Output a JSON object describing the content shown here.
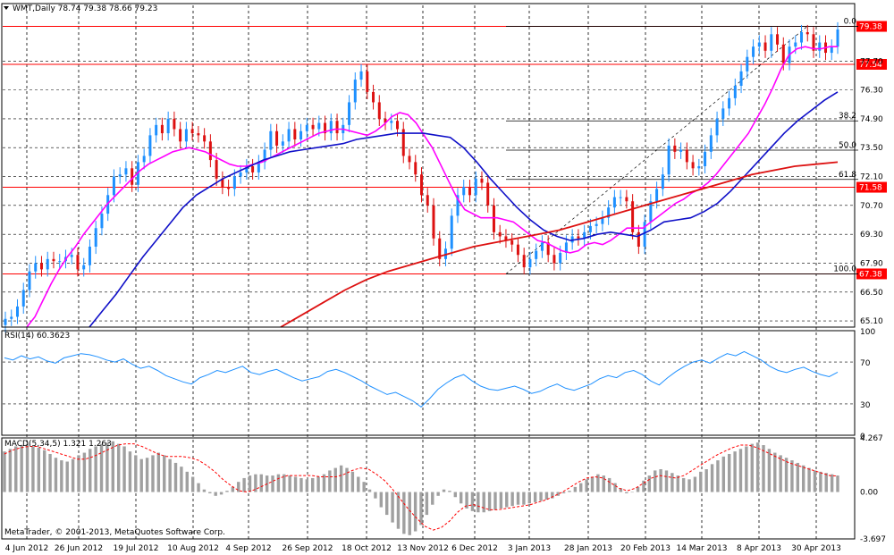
{
  "chart_data": {
    "type": "candlestick",
    "symbol_header": "WMT,Daily  78.74 79.38 78.66 79.23",
    "footer_text": "MetaTrader, © 2001-2013, MetaQuotes Software Corp.",
    "colors": {
      "bull": "#1E90FF",
      "bear": "#DD1111",
      "ma_fast": "#FF00FF",
      "ma_mid": "#1010C8",
      "ma_slow": "#DD1111",
      "hline": "#FF0000",
      "rsi": "#1E90FF",
      "macd_signal": "#FF0000",
      "macd_hist": "#A0A0A0"
    },
    "price_panel": {
      "ylim": [
        64.8,
        80.4
      ],
      "y_ticks": [
        "65.10",
        "66.50",
        "67.90",
        "69.30",
        "70.70",
        "72.10",
        "73.50",
        "74.90",
        "76.30",
        "77.70"
      ],
      "y_tick_values": [
        65.1,
        66.5,
        67.9,
        69.3,
        70.7,
        72.1,
        73.5,
        74.9,
        76.3,
        77.7
      ],
      "horizontal_lines": [
        {
          "label": "79.38",
          "value": 79.38
        },
        {
          "label": "77.54",
          "value": 77.54
        },
        {
          "label": "71.58",
          "value": 71.58
        },
        {
          "label": "67.38",
          "value": 67.38
        }
      ],
      "fibonacci": {
        "high": 79.38,
        "low": 67.38,
        "levels": [
          {
            "label": "0.0",
            "value": 79.38
          },
          {
            "label": "38.2",
            "value": 74.8
          },
          {
            "label": "50.0",
            "value": 73.38
          },
          {
            "label": "61.8",
            "value": 71.96
          },
          {
            "label": "100.0",
            "value": 67.38
          }
        ]
      },
      "closes": [
        65.2,
        65.3,
        65.8,
        66.6,
        67.5,
        67.9,
        67.6,
        68.1,
        68.0,
        68.0,
        68.2,
        68.3,
        67.6,
        67.8,
        68.7,
        69.6,
        70.3,
        71.2,
        72.1,
        72.2,
        72.5,
        71.7,
        72.8,
        73.1,
        74.1,
        74.6,
        74.2,
        74.9,
        74.4,
        73.8,
        74.4,
        74.2,
        74.1,
        73.8,
        72.9,
        72.0,
        71.6,
        71.5,
        72.1,
        72.3,
        72.6,
        72.3,
        72.8,
        73.4,
        74.3,
        73.6,
        73.8,
        74.4,
        73.9,
        74.3,
        74.6,
        74.4,
        74.7,
        74.2,
        74.8,
        74.2,
        74.6,
        75.7,
        76.8,
        77.2,
        76.2,
        75.7,
        74.9,
        74.7,
        74.8,
        74.4,
        73.1,
        72.8,
        72.2,
        71.2,
        70.7,
        69.1,
        68.1,
        68.6,
        70.2,
        71.2,
        71.6,
        71.2,
        72.0,
        71.8,
        70.7,
        69.4,
        69.2,
        69.0,
        68.8,
        68.3,
        67.7,
        68.1,
        68.5,
        68.9,
        68.3,
        67.9,
        68.4,
        68.9,
        69.2,
        69.1,
        69.4,
        69.7,
        69.8,
        70.1,
        70.6,
        71.1,
        71.1,
        70.9,
        69.4,
        68.7,
        69.9,
        70.9,
        71.5,
        72.2,
        73.6,
        73.3,
        73.4,
        72.8,
        72.5,
        72.6,
        73.3,
        74.1,
        74.9,
        75.4,
        75.9,
        76.5,
        77.2,
        77.9,
        78.4,
        78.6,
        78.2,
        79.0,
        78.5,
        77.6,
        78.4,
        78.6,
        79.1,
        79.0,
        78.2,
        78.6,
        78.1,
        78.4,
        79.23
      ],
      "ma_fast": [
        64.8,
        65.3,
        66.1,
        66.9,
        67.6,
        68.2,
        68.7,
        69.3,
        69.8,
        70.3,
        70.8,
        71.2,
        71.6,
        72.0,
        72.4,
        72.7,
        72.9,
        73.1,
        73.3,
        73.4,
        73.5,
        73.4,
        73.3,
        73.1,
        72.9,
        72.7,
        72.6,
        72.6,
        72.7,
        72.8,
        73.0,
        73.2,
        73.4,
        73.6,
        73.8,
        74.0,
        74.2,
        74.3,
        74.4,
        74.4,
        74.3,
        74.2,
        74.1,
        74.3,
        74.6,
        75.0,
        75.2,
        75.1,
        74.7,
        74.1,
        73.5,
        72.7,
        71.9,
        71.1,
        70.5,
        70.3,
        70.1,
        70.1,
        70.1,
        70.0,
        69.9,
        69.6,
        69.3,
        69.0,
        68.9,
        68.7,
        68.5,
        68.4,
        68.5,
        68.8,
        68.9,
        68.8,
        69.0,
        69.3,
        69.6,
        69.6,
        69.6,
        69.9,
        70.2,
        70.5,
        70.8,
        71.0,
        71.3,
        71.5,
        71.8,
        72.2,
        72.7,
        73.2,
        73.7,
        74.2,
        74.9,
        75.6,
        76.4,
        77.3,
        78.0,
        78.3,
        78.4,
        78.3,
        78.3,
        78.4,
        78.4
      ],
      "ma_mid": [
        64.8,
        65.6,
        66.4,
        67.3,
        68.2,
        69.0,
        69.8,
        70.6,
        71.2,
        71.6,
        72.0,
        72.3,
        72.6,
        72.9,
        73.1,
        73.3,
        73.4,
        73.5,
        73.6,
        73.7,
        73.9,
        74.0,
        74.1,
        74.2,
        74.2,
        74.2,
        74.1,
        74.0,
        73.5,
        72.8,
        72.0,
        71.3,
        70.6,
        70.0,
        69.5,
        69.2,
        69.0,
        69.1,
        69.3,
        69.4,
        69.3,
        69.2,
        69.5,
        69.9,
        70.0,
        70.1,
        70.4,
        70.8,
        71.4,
        72.1,
        72.8,
        73.5,
        74.2,
        74.8,
        75.3,
        75.8,
        76.2
      ],
      "ma_slow": [
        64.8,
        65.4,
        66.0,
        66.6,
        67.1,
        67.5,
        67.8,
        68.1,
        68.4,
        68.7,
        68.9,
        69.1,
        69.3,
        69.5,
        69.8,
        70.1,
        70.4,
        70.7,
        71.0,
        71.3,
        71.6,
        71.9,
        72.2,
        72.4,
        72.6,
        72.7,
        72.8
      ],
      "date_labels": [
        "4 Jun 2012",
        "26 Jun 2012",
        "19 Jul 2012",
        "10 Aug 2012",
        "4 Sep 2012",
        "26 Sep 2012",
        "18 Oct 2012",
        "13 Nov 2012",
        "6 Dec 2012",
        "3 Jan 2013",
        "28 Jan 2013",
        "20 Feb 2013",
        "14 Mar 2013",
        "8 Apr 2013",
        "30 Apr 2013"
      ]
    },
    "rsi_panel": {
      "label": "RSI(14) 60.3623",
      "ylim": [
        0,
        100
      ],
      "y_ticks": [
        "100",
        "70",
        "30",
        "0"
      ],
      "y_tick_values": [
        100,
        70,
        30,
        0
      ],
      "levels": [
        70,
        30
      ],
      "values": [
        74,
        72,
        76,
        73,
        75,
        71,
        69,
        74,
        76,
        78,
        77,
        75,
        72,
        70,
        73,
        68,
        64,
        66,
        62,
        57,
        54,
        51,
        49,
        55,
        58,
        62,
        60,
        63,
        66,
        60,
        58,
        61,
        63,
        59,
        55,
        52,
        54,
        56,
        61,
        63,
        60,
        56,
        52,
        47,
        43,
        39,
        41,
        37,
        33,
        27,
        35,
        44,
        50,
        55,
        58,
        52,
        47,
        44,
        43,
        45,
        47,
        44,
        40,
        42,
        46,
        49,
        45,
        43,
        46,
        49,
        54,
        57,
        55,
        60,
        62,
        58,
        52,
        48,
        55,
        61,
        66,
        70,
        72,
        69,
        74,
        78,
        76,
        80,
        76,
        72,
        66,
        62,
        60,
        63,
        65,
        61,
        58,
        56,
        60.36
      ]
    },
    "macd_panel": {
      "label": "MACD(5,34,5) 1.321 1.263",
      "ylim": [
        -3.697,
        4.267
      ],
      "y_ticks": [
        "4.267",
        "0.00",
        "-3.697"
      ],
      "y_tick_values": [
        4.267,
        0.0,
        -3.697
      ],
      "histogram": [
        3.2,
        3.4,
        3.6,
        3.7,
        3.8,
        3.6,
        3.5,
        3.3,
        3.0,
        2.7,
        2.5,
        2.4,
        2.6,
        2.9,
        3.1,
        3.4,
        3.6,
        3.8,
        3.9,
        4.0,
        3.8,
        3.6,
        3.2,
        2.9,
        2.6,
        2.7,
        2.9,
        3.1,
        2.9,
        2.6,
        2.3,
        2.0,
        1.6,
        1.2,
        0.7,
        0.2,
        -0.1,
        -0.3,
        -0.2,
        0.1,
        0.4,
        0.8,
        1.1,
        1.3,
        1.4,
        1.4,
        1.3,
        1.3,
        1.4,
        1.4,
        1.3,
        1.2,
        1.1,
        1.0,
        1.1,
        1.2,
        1.4,
        1.7,
        1.9,
        2.1,
        1.9,
        1.6,
        1.2,
        0.8,
        0.2,
        -0.5,
        -1.2,
        -1.8,
        -2.4,
        -2.9,
        -3.3,
        -3.4,
        -3.1,
        -2.6,
        -1.8,
        -1.0,
        -0.3,
        0.2,
        0.1,
        -0.4,
        -0.9,
        -1.3,
        -1.5,
        -1.6,
        -1.6,
        -1.5,
        -1.4,
        -1.3,
        -1.2,
        -1.1,
        -1.0,
        -1.0,
        -0.9,
        -0.8,
        -0.7,
        -0.6,
        -0.5,
        -0.3,
        -0.1,
        0.1,
        0.4,
        0.7,
        1.0,
        1.2,
        1.4,
        1.3,
        1.1,
        0.7,
        0.3,
        -0.1,
        0.0,
        0.4,
        0.9,
        1.3,
        1.7,
        1.8,
        1.7,
        1.5,
        1.3,
        1.1,
        1.0,
        1.2,
        1.6,
        1.8,
        2.2,
        2.5,
        2.8,
        3.0,
        3.2,
        3.4,
        3.6,
        3.8,
        3.9,
        3.7,
        3.4,
        3.1,
        2.9,
        2.7,
        2.5,
        2.3,
        2.1,
        1.9,
        1.7,
        1.6,
        1.5,
        1.4,
        1.3
      ],
      "signal": [
        3.0,
        3.3,
        3.5,
        3.6,
        3.6,
        3.4,
        3.2,
        3.0,
        2.8,
        2.6,
        2.6,
        2.8,
        3.1,
        3.4,
        3.7,
        3.8,
        3.8,
        3.6,
        3.3,
        3.0,
        2.8,
        2.8,
        2.8,
        2.7,
        2.5,
        2.1,
        1.6,
        1.0,
        0.5,
        0.1,
        0.0,
        0.2,
        0.5,
        0.8,
        1.1,
        1.3,
        1.3,
        1.3,
        1.3,
        1.2,
        1.2,
        1.2,
        1.4,
        1.7,
        1.9,
        1.8,
        1.4,
        0.9,
        0.2,
        -0.6,
        -1.4,
        -2.1,
        -2.7,
        -3.0,
        -2.8,
        -2.3,
        -1.6,
        -1.1,
        -1.0,
        -1.2,
        -1.4,
        -1.4,
        -1.3,
        -1.2,
        -1.1,
        -1.0,
        -0.8,
        -0.6,
        -0.3,
        0.0,
        0.4,
        0.8,
        1.1,
        1.2,
        1.1,
        0.7,
        0.3,
        0.1,
        0.3,
        0.7,
        1.1,
        1.3,
        1.2,
        1.1,
        1.3,
        1.7,
        2.1,
        2.5,
        2.9,
        3.2,
        3.5,
        3.7,
        3.7,
        3.5,
        3.2,
        2.9,
        2.6,
        2.3,
        2.1,
        1.9,
        1.7,
        1.5,
        1.3,
        1.26
      ]
    }
  }
}
